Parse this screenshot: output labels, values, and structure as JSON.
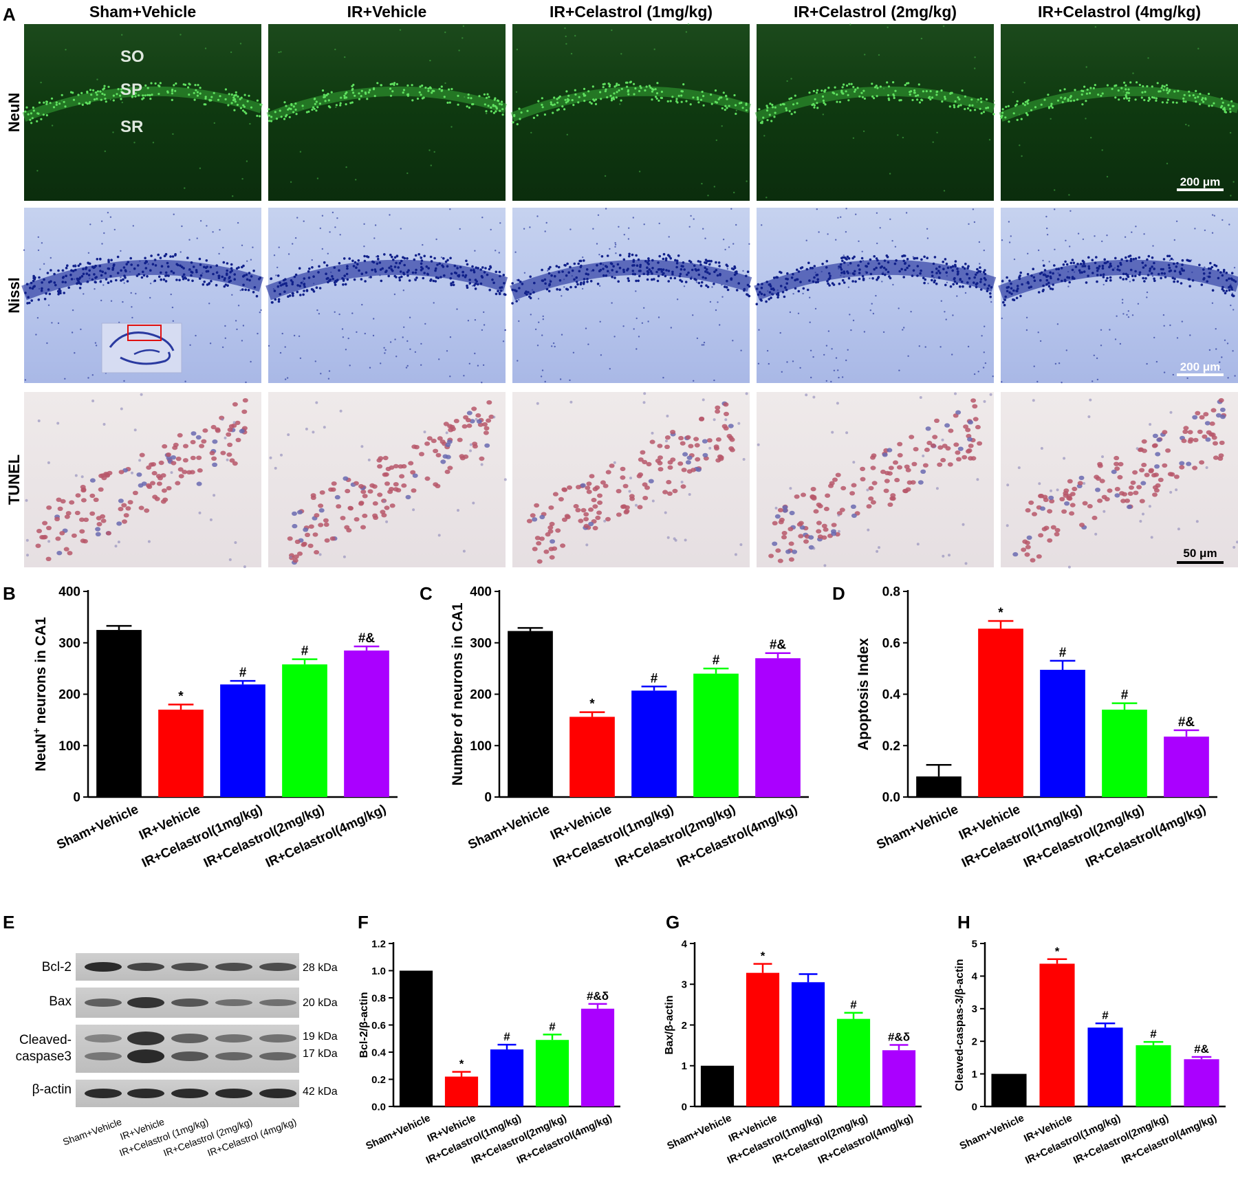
{
  "figure": {
    "panel_letters": [
      "A",
      "B",
      "C",
      "D",
      "E",
      "F",
      "G",
      "H"
    ],
    "colors": {
      "black": "#000000",
      "red": "#ff0000",
      "blue": "#0000ff",
      "green": "#00ff00",
      "purple": "#aa00ff"
    }
  },
  "panel_a": {
    "columns": [
      "Sham+Vehicle",
      "IR+Vehicle",
      "IR+Celastrol (1mg/kg)",
      "IR+Celastrol (2mg/kg)",
      "IR+Celastrol (4mg/kg)"
    ],
    "rows": [
      "NeuN",
      "Nissl",
      "TUNEL"
    ],
    "layer_labels": [
      "SO",
      "SP",
      "SR"
    ],
    "scalebars": [
      "200 μm",
      "200 μm",
      "50 μm"
    ]
  },
  "chart_data": [
    {
      "id": "B",
      "type": "bar",
      "categories": [
        "Sham+Vehicle",
        "IR+Vehicle",
        "IR+Celastrol(1mg/kg)",
        "IR+Celastrol(2mg/kg)",
        "IR+Celastrol(4mg/kg)"
      ],
      "values": [
        325,
        170,
        219,
        258,
        285
      ],
      "errors": [
        8,
        10,
        7,
        10,
        8
      ],
      "annotations": [
        "",
        "*",
        "#",
        "#",
        "#&"
      ],
      "ylabel_main": "NeuN",
      "ylabel_sup": "+",
      "ylabel_rest": " neurons in CA1",
      "ylim": [
        0,
        400
      ],
      "yticks": [
        0,
        100,
        200,
        300,
        400
      ],
      "ytick_labels": [
        "0",
        "100",
        "200",
        "300",
        "400"
      ]
    },
    {
      "id": "C",
      "type": "bar",
      "categories": [
        "Sham+Vehicle",
        "IR+Vehicle",
        "IR+Celastrol(1mg/kg)",
        "IR+Celastrol(2mg/kg)",
        "IR+Celastrol(4mg/kg)"
      ],
      "values": [
        323,
        156,
        207,
        240,
        270
      ],
      "errors": [
        6,
        9,
        8,
        10,
        10
      ],
      "annotations": [
        "",
        "*",
        "#",
        "#",
        "#&"
      ],
      "ylabel_main": "Number of neurons in CA1",
      "ylabel_sup": "",
      "ylabel_rest": "",
      "ylim": [
        0,
        400
      ],
      "yticks": [
        0,
        100,
        200,
        300,
        400
      ],
      "ytick_labels": [
        "0",
        "100",
        "200",
        "300",
        "400"
      ]
    },
    {
      "id": "D",
      "type": "bar",
      "categories": [
        "Sham+Vehicle",
        "IR+Vehicle",
        "IR+Celastrol(1mg/kg)",
        "IR+Celastrol(2mg/kg)",
        "IR+Celastrol(4mg/kg)"
      ],
      "values": [
        0.08,
        0.655,
        0.495,
        0.34,
        0.235
      ],
      "errors": [
        0.045,
        0.03,
        0.035,
        0.025,
        0.025
      ],
      "annotations": [
        "",
        "*",
        "#",
        "#",
        "#&"
      ],
      "ylabel_main": "Apoptosis Index",
      "ylabel_sup": "",
      "ylabel_rest": "",
      "ylim": [
        0,
        0.8
      ],
      "yticks": [
        0,
        0.2,
        0.4,
        0.6,
        0.8
      ],
      "ytick_labels": [
        "0.0",
        "0.2",
        "0.4",
        "0.6",
        "0.8"
      ]
    },
    {
      "id": "F",
      "type": "bar",
      "categories": [
        "Sham+Vehicle",
        "IR+Vehicle",
        "IR+Celastrol(1mg/kg)",
        "IR+Celastrol(2mg/kg)",
        "IR+Celastrol(4mg/kg)"
      ],
      "values": [
        1.0,
        0.22,
        0.42,
        0.49,
        0.72
      ],
      "errors": [
        0,
        0.035,
        0.035,
        0.04,
        0.035
      ],
      "annotations": [
        "",
        "*",
        "#",
        "#",
        "#&δ"
      ],
      "ylabel_main": "Bcl-2/β-actin",
      "ylabel_sup": "",
      "ylabel_rest": "",
      "ylim": [
        0,
        1.2
      ],
      "yticks": [
        0,
        0.2,
        0.4,
        0.6,
        0.8,
        1.0,
        1.2
      ],
      "ytick_labels": [
        "0.0",
        "0.2",
        "0.4",
        "0.6",
        "0.8",
        "1.0",
        "1.2"
      ]
    },
    {
      "id": "G",
      "type": "bar",
      "categories": [
        "Sham+Vehicle",
        "IR+Vehicle",
        "IR+Celastrol(1mg/kg)",
        "IR+Celastrol(2mg/kg)",
        "IR+Celastrol(4mg/kg)"
      ],
      "values": [
        1.0,
        3.28,
        3.05,
        2.15,
        1.38
      ],
      "errors": [
        0,
        0.22,
        0.2,
        0.15,
        0.13
      ],
      "annotations": [
        "",
        "*",
        "",
        "#",
        "#&δ"
      ],
      "ylabel_main": "Bax/β-actin",
      "ylabel_sup": "",
      "ylabel_rest": "",
      "ylim": [
        0,
        4
      ],
      "yticks": [
        0,
        1,
        2,
        3,
        4
      ],
      "ytick_labels": [
        "0",
        "1",
        "2",
        "3",
        "4"
      ]
    },
    {
      "id": "H",
      "type": "bar",
      "categories": [
        "Sham+Vehicle",
        "IR+Vehicle",
        "IR+Celastrol(1mg/kg)",
        "IR+Celastrol(2mg/kg)",
        "IR+Celastrol(4mg/kg)"
      ],
      "values": [
        1.0,
        4.38,
        2.42,
        1.88,
        1.45
      ],
      "errors": [
        0,
        0.14,
        0.13,
        0.1,
        0.07
      ],
      "annotations": [
        "",
        "*",
        "#",
        "#",
        "#&"
      ],
      "ylabel_main": "Cleaved-caspas-3/β-actin",
      "ylabel_sup": "",
      "ylabel_rest": "",
      "ylim": [
        0,
        5
      ],
      "yticks": [
        0,
        1,
        2,
        3,
        4,
        5
      ],
      "ytick_labels": [
        "0",
        "1",
        "2",
        "3",
        "4",
        "5"
      ]
    }
  ],
  "panel_e": {
    "proteins": [
      "Bcl-2",
      "Bax",
      "Cleaved-",
      "caspase3",
      "β-actin"
    ],
    "kda": [
      "28 kDa",
      "20 kDa",
      "19 kDa",
      "17 kDa",
      "42 kDa"
    ],
    "lanes": [
      "Sham+Vehicle",
      "IR+Vehicle",
      "IR+Celastrol (1mg/kg)",
      "IR+Celastrol (2mg/kg)",
      "IR+Celastrol (4mg/kg)"
    ]
  }
}
